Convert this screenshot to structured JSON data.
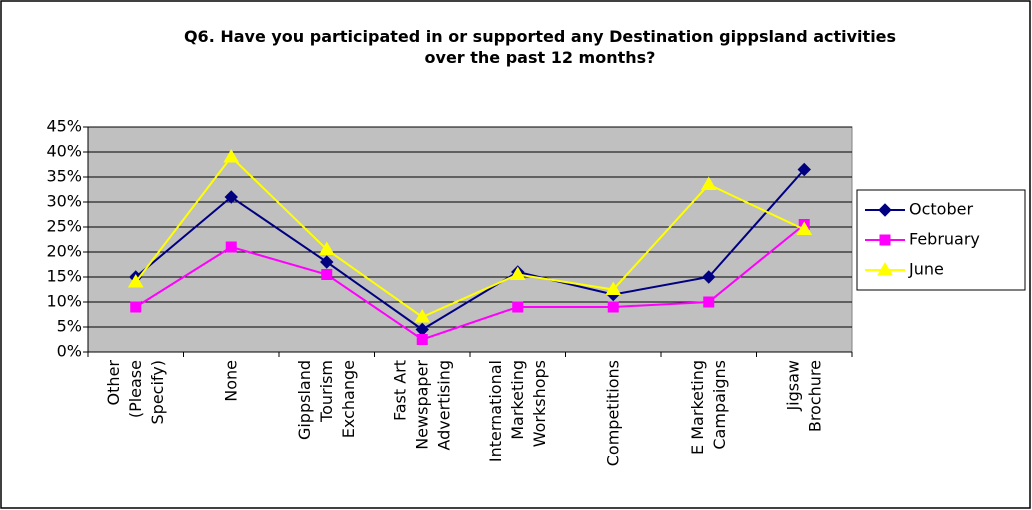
{
  "chart_data": {
    "type": "line",
    "title": "Q6. Have you participated in or supported any Destination gippsland activities over the past 12 months?",
    "categories": [
      "Other (Please Specify)",
      "None",
      "Gippsland Tourism Exchange",
      "Fast Art Newspaper Advertising",
      "International Marketing Workshops",
      "Competitions",
      "E Marketing Campaigns",
      "Jigsaw Brochure"
    ],
    "series": [
      {
        "name": "October",
        "color": "#000080",
        "marker": "diamond",
        "values": [
          15,
          31,
          18,
          4.5,
          16,
          11.5,
          15,
          36.5
        ]
      },
      {
        "name": "February",
        "color": "#ff00ff",
        "marker": "square",
        "values": [
          9,
          21,
          15.5,
          2.5,
          9,
          9,
          10,
          25.5
        ]
      },
      {
        "name": "June",
        "color": "#ffff00",
        "marker": "triangle",
        "values": [
          14,
          39,
          20.5,
          7,
          15.5,
          12.5,
          33.5,
          24.5
        ]
      }
    ],
    "ylim": [
      0,
      45
    ],
    "yticks": [
      {
        "value": 0,
        "label": "0%"
      },
      {
        "value": 5,
        "label": "5%"
      },
      {
        "value": 10,
        "label": "10%"
      },
      {
        "value": 15,
        "label": "15%"
      },
      {
        "value": 20,
        "label": "20%"
      },
      {
        "value": 25,
        "label": "25%"
      },
      {
        "value": 30,
        "label": "30%"
      },
      {
        "value": 35,
        "label": "35%"
      },
      {
        "value": 40,
        "label": "40%"
      },
      {
        "value": 45,
        "label": "45%"
      }
    ],
    "grid": true,
    "legend": "right",
    "plot_background": "#c0c0c0"
  }
}
